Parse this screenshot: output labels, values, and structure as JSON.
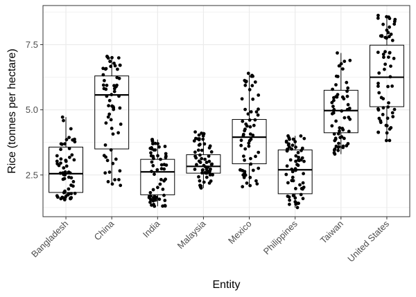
{
  "chart_data": {
    "type": "box",
    "xlabel": "Entity",
    "ylabel": "Rice (tonnes per hectare)",
    "ylim": [
      0.9,
      9.0
    ],
    "yticks": [
      2.5,
      5.0,
      7.5
    ],
    "ytick_labels": [
      "2.5",
      "5.0",
      "7.5"
    ],
    "grid": true,
    "categories": [
      "Bangladesh",
      "China",
      "India",
      "Malaysia",
      "Mexico",
      "Philippines",
      "Taiwan",
      "United States"
    ],
    "boxes": [
      {
        "entity": "Bangladesh",
        "q1": 1.83,
        "median": 2.55,
        "q3": 3.57,
        "lower_whisker": 1.55,
        "upper_whisker": 4.72
      },
      {
        "entity": "China",
        "q1": 3.5,
        "median": 5.57,
        "q3": 6.3,
        "lower_whisker": 2.1,
        "upper_whisker": 7.05
      },
      {
        "entity": "India",
        "q1": 1.74,
        "median": 2.62,
        "q3": 3.1,
        "lower_whisker": 1.3,
        "upper_whisker": 3.86
      },
      {
        "entity": "Malaysia",
        "q1": 2.57,
        "median": 2.83,
        "q3": 3.28,
        "lower_whisker": 2.0,
        "upper_whisker": 4.15
      },
      {
        "entity": "Mexico",
        "q1": 2.93,
        "median": 3.95,
        "q3": 4.63,
        "lower_whisker": 2.05,
        "upper_whisker": 6.4
      },
      {
        "entity": "Philippines",
        "q1": 1.78,
        "median": 2.7,
        "q3": 3.46,
        "lower_whisker": 1.25,
        "upper_whisker": 4.0
      },
      {
        "entity": "Taiwan",
        "q1": 4.12,
        "median": 4.97,
        "q3": 5.75,
        "lower_whisker": 3.3,
        "upper_whisker": 7.18
      },
      {
        "entity": "United States",
        "q1": 5.12,
        "median": 6.25,
        "q3": 7.48,
        "lower_whisker": 3.82,
        "upper_whisker": 8.62
      }
    ]
  }
}
